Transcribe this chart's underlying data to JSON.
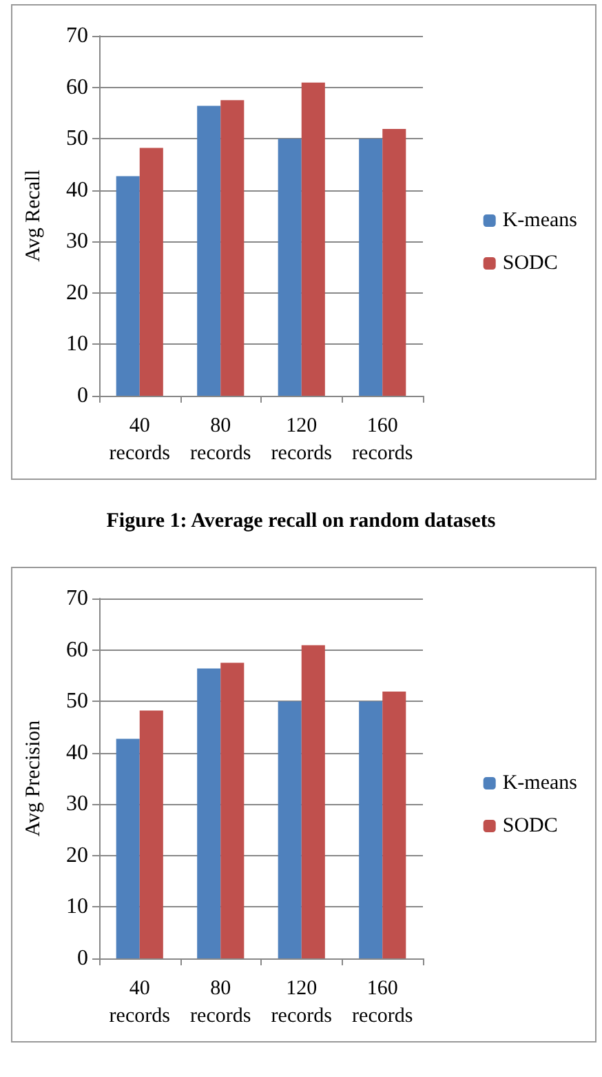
{
  "chart_data": [
    {
      "type": "bar",
      "ylabel": "Avg Recall",
      "categories": [
        "40\nrecords",
        "80\nrecords",
        "120\nrecords",
        "160\nrecords"
      ],
      "series": [
        {
          "name": "K-means",
          "color": "#4f81bd",
          "values": [
            42.7,
            56.4,
            50,
            50
          ]
        },
        {
          "name": "SODC",
          "color": "#c0504d",
          "values": [
            48.2,
            57.5,
            60.9,
            51.9
          ]
        }
      ],
      "ylim": [
        0,
        70
      ],
      "yticks": [
        0,
        10,
        20,
        30,
        40,
        50,
        60,
        70
      ],
      "grid": "y",
      "legend": "right",
      "annotations": [
        "Figure 1: Average recall on random datasets"
      ]
    },
    {
      "type": "bar",
      "ylabel": "Avg Precision",
      "categories": [
        "40\nrecords",
        "80\nrecords",
        "120\nrecords",
        "160\nrecords"
      ],
      "series": [
        {
          "name": "K-means",
          "color": "#4f81bd",
          "values": [
            42.7,
            56.4,
            50,
            50
          ]
        },
        {
          "name": "SODC",
          "color": "#c0504d",
          "values": [
            48.2,
            57.5,
            60.9,
            51.9
          ]
        }
      ],
      "ylim": [
        0,
        70
      ],
      "yticks": [
        0,
        10,
        20,
        30,
        40,
        50,
        60,
        70
      ],
      "grid": "y",
      "legend": "right"
    }
  ]
}
